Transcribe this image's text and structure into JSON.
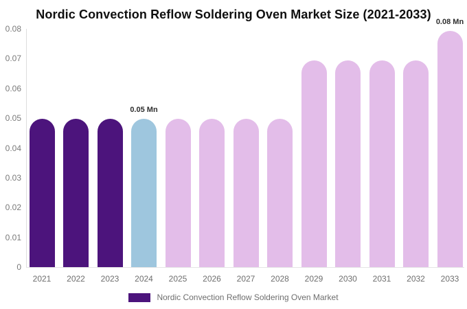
{
  "chart_data": {
    "type": "bar",
    "title": "Nordic Convection Reflow Soldering Oven Market Size (2021-2033)",
    "categories": [
      "2021",
      "2022",
      "2023",
      "2024",
      "2025",
      "2026",
      "2027",
      "2028",
      "2029",
      "2030",
      "2031",
      "2032",
      "2033"
    ],
    "values": [
      0.0497,
      0.0497,
      0.0497,
      0.0497,
      0.0497,
      0.0497,
      0.0497,
      0.0497,
      0.0693,
      0.0693,
      0.0693,
      0.0693,
      0.0792
    ],
    "bar_colors": [
      "#4C147C",
      "#4C147C",
      "#4C147C",
      "#9EC6DE",
      "#E3BDE9",
      "#E3BDE9",
      "#E3BDE9",
      "#E3BDE9",
      "#E3BDE9",
      "#E3BDE9",
      "#E3BDE9",
      "#E3BDE9",
      "#E3BDE9"
    ],
    "point_labels": [
      null,
      null,
      null,
      "0.05 Mn",
      null,
      null,
      null,
      null,
      null,
      null,
      null,
      null,
      "0.08 Mn"
    ],
    "xlabel": "",
    "ylabel": "",
    "ylim": [
      0,
      0.08
    ],
    "yticks": [
      0,
      0.01,
      0.02,
      0.03,
      0.04,
      0.05,
      0.06,
      0.07,
      0.08
    ],
    "ytick_labels": [
      "0",
      "0.01",
      "0.02",
      "0.03",
      "0.04",
      "0.05",
      "0.06",
      "0.07",
      "0.08"
    ],
    "grid": false,
    "legend_position": "bottom",
    "legend_label": "Nordic Convection Reflow Soldering Oven Market",
    "unit_suffix": "Mn"
  },
  "colors": {
    "primary_purple": "#4C147C",
    "highlight_blue": "#9EC6DE",
    "forecast_pink": "#E3BDE9",
    "axis_line": "#dddddd",
    "tick_text": "#7a7a7a",
    "value_label_text": "#2e2e2e",
    "title_text": "#0f0f0f",
    "background": "#ffffff"
  }
}
